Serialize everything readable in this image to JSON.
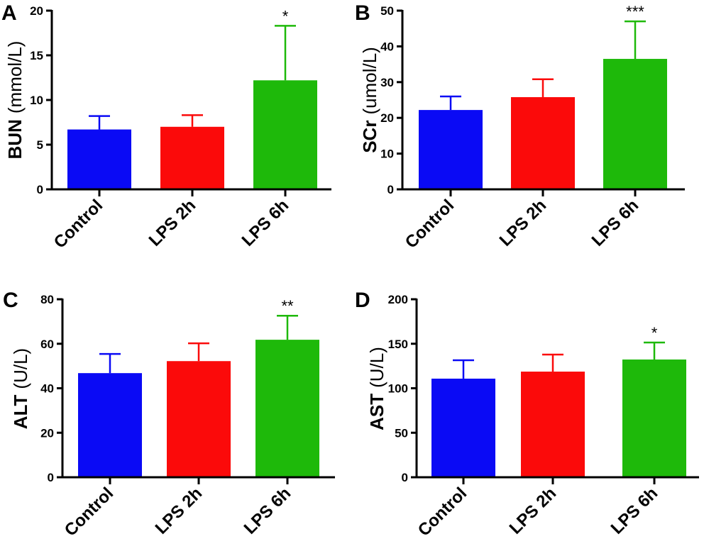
{
  "colors": {
    "Control": "#0a0af5",
    "LPS 2h": "#fb0a0a",
    "LPS 6h": "#1eb90a",
    "axis": "#000000"
  },
  "chart_data": [
    {
      "panel": "A",
      "type": "bar",
      "ylabel_main": "BUN",
      "ylabel_unit": "(mmol/L)",
      "categories": [
        "Control",
        "LPS 2h",
        "LPS 6h"
      ],
      "values": [
        6.7,
        7.0,
        12.2
      ],
      "errors_upper": [
        8.2,
        8.3,
        18.3
      ],
      "significance": [
        "",
        "",
        "*"
      ],
      "ylim": [
        0,
        20
      ],
      "yticks": [
        0,
        5,
        10,
        15,
        20
      ]
    },
    {
      "panel": "B",
      "type": "bar",
      "ylabel_main": "SCr",
      "ylabel_unit": "(umol/L)",
      "categories": [
        "Control",
        "LPS 2h",
        "LPS 6h"
      ],
      "values": [
        22.2,
        25.8,
        36.5
      ],
      "errors_upper": [
        26.0,
        30.8,
        47.0
      ],
      "significance": [
        "",
        "",
        "***"
      ],
      "ylim": [
        0,
        50
      ],
      "yticks": [
        0,
        10,
        20,
        30,
        40,
        50
      ]
    },
    {
      "panel": "C",
      "type": "bar",
      "ylabel_main": "ALT",
      "ylabel_unit": "(U/L)",
      "categories": [
        "Control",
        "LPS 2h",
        "LPS 6h"
      ],
      "values": [
        46.8,
        52.2,
        61.8
      ],
      "errors_upper": [
        55.4,
        60.2,
        72.6
      ],
      "significance": [
        "",
        "",
        "**"
      ],
      "ylim": [
        0,
        80
      ],
      "yticks": [
        0,
        20,
        40,
        60,
        80
      ]
    },
    {
      "panel": "D",
      "type": "bar",
      "ylabel_main": "AST",
      "ylabel_unit": "(U/L)",
      "categories": [
        "Control",
        "LPS 2h",
        "LPS 6h"
      ],
      "values": [
        110.8,
        118.7,
        132.3
      ],
      "errors_upper": [
        131.5,
        137.8,
        151.4
      ],
      "significance": [
        "",
        "",
        "*"
      ],
      "ylim": [
        0,
        200
      ],
      "yticks": [
        0,
        50,
        100,
        150,
        200
      ]
    }
  ]
}
